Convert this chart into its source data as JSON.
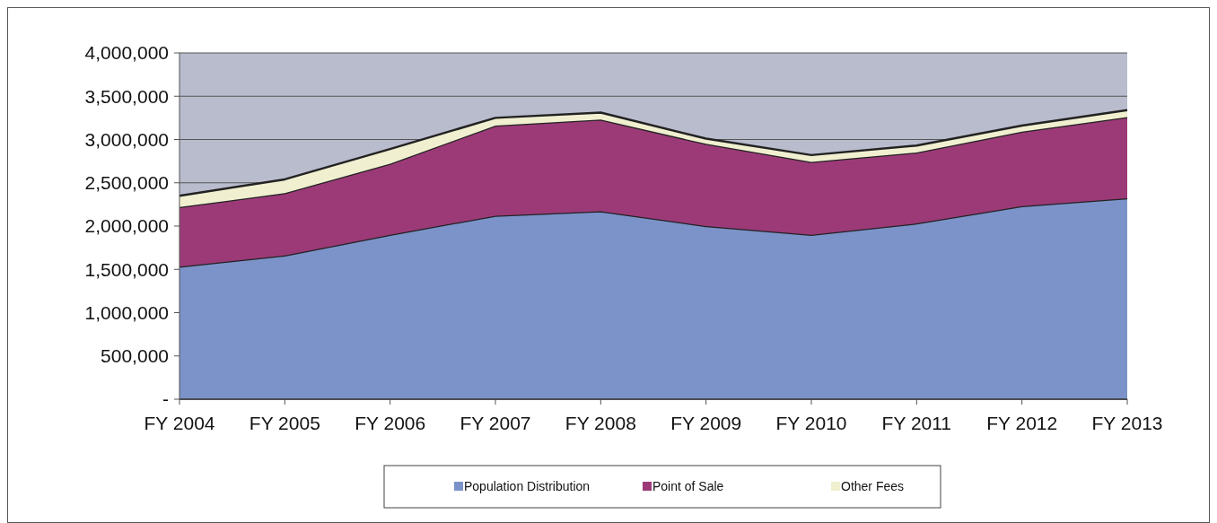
{
  "chart_data": {
    "type": "area",
    "stacked": true,
    "categories": [
      "FY 2004",
      "FY 2005",
      "FY 2006",
      "FY 2007",
      "FY 2008",
      "FY 2009",
      "FY 2010",
      "FY 2011",
      "FY 2012",
      "FY 2013"
    ],
    "series": [
      {
        "name": "Population Distribution",
        "color": "#7b93c9",
        "values": [
          1530000,
          1660000,
          1900000,
          2120000,
          2170000,
          2000000,
          1900000,
          2030000,
          2230000,
          2320000
        ]
      },
      {
        "name": "Point of Sale",
        "color": "#9c3a78",
        "values": [
          690000,
          720000,
          820000,
          1040000,
          1060000,
          950000,
          840000,
          820000,
          860000,
          940000
        ]
      },
      {
        "name": "Other Fees",
        "color": "#f0efd0",
        "values": [
          130000,
          160000,
          170000,
          90000,
          80000,
          60000,
          80000,
          80000,
          70000,
          80000
        ]
      }
    ],
    "ylim": [
      0,
      4000000
    ],
    "yticks": [
      {
        "value": 0,
        "label": "-"
      },
      {
        "value": 500000,
        "label": "500,000"
      },
      {
        "value": 1000000,
        "label": "1,000,000"
      },
      {
        "value": 1500000,
        "label": "1,500,000"
      },
      {
        "value": 2000000,
        "label": "2,000,000"
      },
      {
        "value": 2500000,
        "label": "2,500,000"
      },
      {
        "value": 3000000,
        "label": "3,000,000"
      },
      {
        "value": 3500000,
        "label": "3,500,000"
      },
      {
        "value": 4000000,
        "label": "4,000,000"
      }
    ],
    "grid": "y",
    "legend": "bottom"
  }
}
